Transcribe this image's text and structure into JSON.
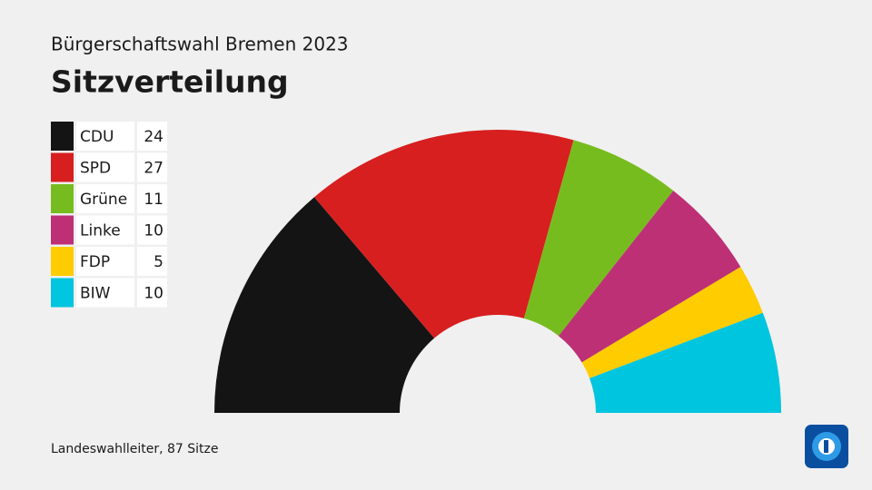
{
  "chart_data": {
    "type": "parliament",
    "title": "Bürgerschaftswahl Bremen 2023",
    "subtitle": "Sitzverteilung",
    "source": "Landeswahlleiter, 87 Sitze",
    "categories": [
      "CDU",
      "SPD",
      "Grüne",
      "Linke",
      "FDP",
      "BIW"
    ],
    "values": [
      24,
      27,
      11,
      10,
      5,
      10
    ],
    "colors": [
      "#141414",
      "#d71f1f",
      "#77bc1f",
      "#bd3076",
      "#ffcc00",
      "#00c5de"
    ]
  }
}
